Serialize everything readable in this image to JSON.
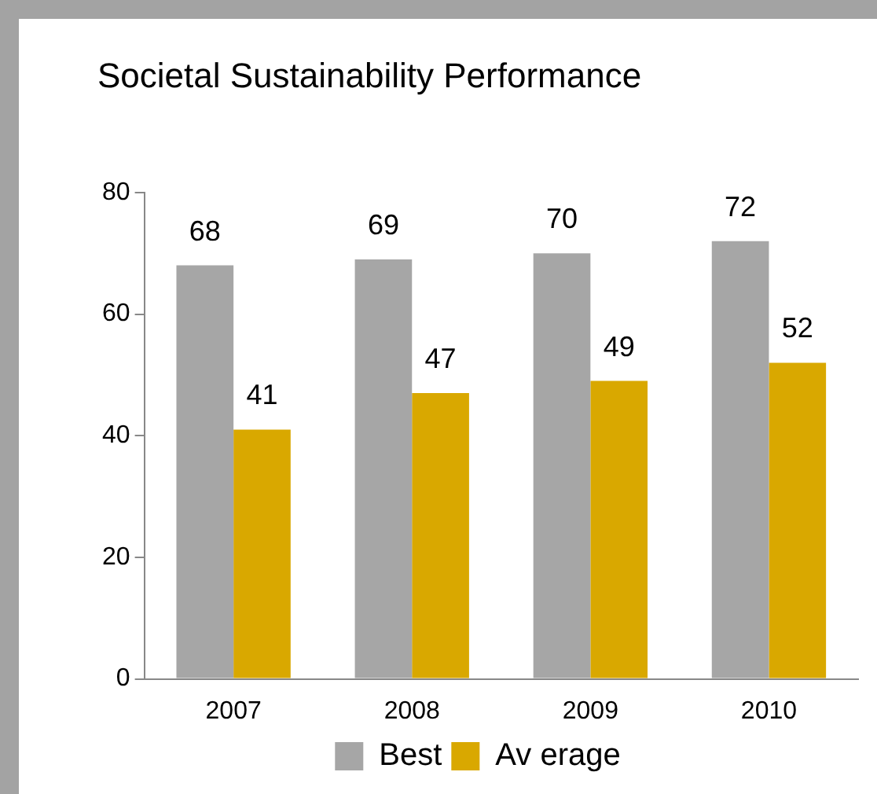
{
  "chart_data": {
    "type": "bar",
    "title": "Societal Sustainability Performance",
    "categories": [
      "2007",
      "2008",
      "2009",
      "2010"
    ],
    "series": [
      {
        "name": "Best",
        "color": "#a6a6a6",
        "values": [
          68,
          69,
          70,
          72
        ]
      },
      {
        "name": "Av erage",
        "color": "#d9a800",
        "values": [
          41,
          47,
          49,
          52
        ]
      }
    ],
    "ylim": [
      0,
      80
    ],
    "yticks": [
      0,
      20,
      40,
      60,
      80
    ],
    "grid": false,
    "legend": "bottom",
    "data_labels": true
  }
}
